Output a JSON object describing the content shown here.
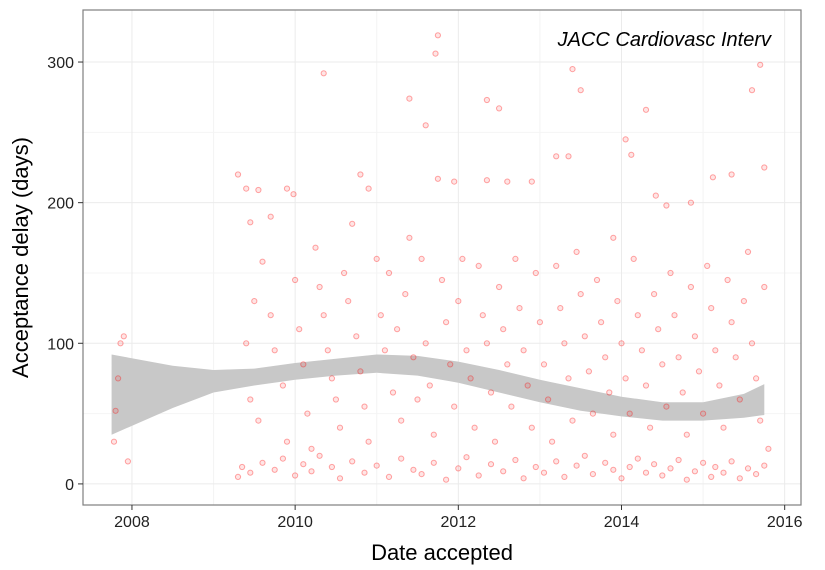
{
  "chart_data": {
    "type": "scatter",
    "title": "",
    "annotation": "JACC Cardiovasc Interv",
    "xlabel": "Date accepted",
    "ylabel": "Acceptance delay (days)",
    "xlim": [
      2007.4,
      2016.2
    ],
    "ylim": [
      -15,
      337
    ],
    "x_ticks": [
      2008,
      2010,
      2012,
      2014,
      2016
    ],
    "y_ticks": [
      0,
      100,
      200,
      300
    ],
    "grid": true,
    "colors": {
      "points": "#ff0000",
      "ribbon": "#c8c8c8",
      "border": "#7f7f7f"
    },
    "smooth_band": {
      "x": [
        2007.75,
        2008.5,
        2009.0,
        2009.5,
        2010.0,
        2010.5,
        2011.0,
        2011.5,
        2012.0,
        2012.5,
        2013.0,
        2013.5,
        2014.0,
        2014.5,
        2015.0,
        2015.5,
        2015.75
      ],
      "lower": [
        35,
        54,
        65,
        70,
        74,
        77,
        79,
        77,
        72,
        65,
        58,
        52,
        48,
        45,
        45,
        47,
        49
      ],
      "upper": [
        92,
        84,
        81,
        82,
        86,
        89,
        92,
        91,
        87,
        81,
        74,
        68,
        62,
        58,
        58,
        64,
        71
      ]
    },
    "series": [
      {
        "points": [
          [
            2007.78,
            30
          ],
          [
            2007.8,
            52
          ],
          [
            2007.83,
            75
          ],
          [
            2007.86,
            100
          ],
          [
            2007.9,
            105
          ],
          [
            2007.95,
            16
          ],
          [
            2009.3,
            220
          ],
          [
            2009.4,
            210
          ],
          [
            2009.45,
            186
          ],
          [
            2009.55,
            209
          ],
          [
            2009.7,
            190
          ],
          [
            2009.9,
            210
          ],
          [
            2009.98,
            206
          ],
          [
            2010.35,
            292
          ],
          [
            2010.8,
            220
          ],
          [
            2010.9,
            210
          ],
          [
            2011.4,
            274
          ],
          [
            2011.6,
            255
          ],
          [
            2011.75,
            217
          ],
          [
            2011.95,
            215
          ],
          [
            2011.72,
            306
          ],
          [
            2011.75,
            319
          ],
          [
            2012.35,
            273
          ],
          [
            2012.5,
            267
          ],
          [
            2012.35,
            216
          ],
          [
            2012.6,
            215
          ],
          [
            2012.9,
            215
          ],
          [
            2013.2,
            233
          ],
          [
            2013.35,
            233
          ],
          [
            2013.4,
            295
          ],
          [
            2013.5,
            280
          ],
          [
            2013.9,
            175
          ],
          [
            2014.05,
            245
          ],
          [
            2014.12,
            234
          ],
          [
            2014.3,
            266
          ],
          [
            2014.42,
            205
          ],
          [
            2014.55,
            198
          ],
          [
            2014.85,
            200
          ],
          [
            2015.12,
            218
          ],
          [
            2015.35,
            220
          ],
          [
            2015.6,
            280
          ],
          [
            2015.7,
            298
          ],
          [
            2015.75,
            225
          ],
          [
            2009.4,
            100
          ],
          [
            2009.45,
            60
          ],
          [
            2009.5,
            130
          ],
          [
            2009.55,
            45
          ],
          [
            2009.6,
            158
          ],
          [
            2009.7,
            120
          ],
          [
            2009.75,
            95
          ],
          [
            2009.85,
            70
          ],
          [
            2009.9,
            30
          ],
          [
            2010.0,
            145
          ],
          [
            2010.05,
            110
          ],
          [
            2010.1,
            85
          ],
          [
            2010.15,
            50
          ],
          [
            2010.2,
            25
          ],
          [
            2010.25,
            168
          ],
          [
            2010.3,
            140
          ],
          [
            2010.35,
            120
          ],
          [
            2010.4,
            95
          ],
          [
            2010.45,
            75
          ],
          [
            2010.5,
            60
          ],
          [
            2010.55,
            40
          ],
          [
            2010.6,
            150
          ],
          [
            2010.65,
            130
          ],
          [
            2010.7,
            185
          ],
          [
            2010.75,
            105
          ],
          [
            2010.8,
            80
          ],
          [
            2010.85,
            55
          ],
          [
            2010.9,
            30
          ],
          [
            2011.0,
            160
          ],
          [
            2011.05,
            120
          ],
          [
            2011.1,
            95
          ],
          [
            2011.15,
            150
          ],
          [
            2011.2,
            65
          ],
          [
            2011.25,
            110
          ],
          [
            2011.3,
            45
          ],
          [
            2011.35,
            135
          ],
          [
            2011.4,
            175
          ],
          [
            2011.45,
            90
          ],
          [
            2011.5,
            60
          ],
          [
            2011.55,
            160
          ],
          [
            2011.6,
            100
          ],
          [
            2011.65,
            70
          ],
          [
            2011.7,
            35
          ],
          [
            2011.8,
            145
          ],
          [
            2011.85,
            115
          ],
          [
            2011.9,
            85
          ],
          [
            2011.95,
            55
          ],
          [
            2012.0,
            130
          ],
          [
            2012.05,
            160
          ],
          [
            2012.1,
            95
          ],
          [
            2012.15,
            75
          ],
          [
            2012.2,
            40
          ],
          [
            2012.25,
            155
          ],
          [
            2012.3,
            120
          ],
          [
            2012.35,
            100
          ],
          [
            2012.4,
            65
          ],
          [
            2012.45,
            30
          ],
          [
            2012.5,
            140
          ],
          [
            2012.55,
            110
          ],
          [
            2012.6,
            85
          ],
          [
            2012.65,
            55
          ],
          [
            2012.7,
            160
          ],
          [
            2012.75,
            125
          ],
          [
            2012.8,
            95
          ],
          [
            2012.85,
            70
          ],
          [
            2012.9,
            40
          ],
          [
            2012.95,
            150
          ],
          [
            2013.0,
            115
          ],
          [
            2013.05,
            85
          ],
          [
            2013.1,
            60
          ],
          [
            2013.15,
            30
          ],
          [
            2013.2,
            155
          ],
          [
            2013.25,
            125
          ],
          [
            2013.3,
            100
          ],
          [
            2013.35,
            75
          ],
          [
            2013.4,
            45
          ],
          [
            2013.45,
            165
          ],
          [
            2013.5,
            135
          ],
          [
            2013.55,
            105
          ],
          [
            2013.6,
            80
          ],
          [
            2013.65,
            50
          ],
          [
            2013.7,
            145
          ],
          [
            2013.75,
            115
          ],
          [
            2013.8,
            90
          ],
          [
            2013.85,
            65
          ],
          [
            2013.9,
            35
          ],
          [
            2013.95,
            130
          ],
          [
            2014.0,
            100
          ],
          [
            2014.05,
            75
          ],
          [
            2014.1,
            50
          ],
          [
            2014.15,
            160
          ],
          [
            2014.2,
            120
          ],
          [
            2014.25,
            95
          ],
          [
            2014.3,
            70
          ],
          [
            2014.35,
            40
          ],
          [
            2014.4,
            135
          ],
          [
            2014.45,
            110
          ],
          [
            2014.5,
            85
          ],
          [
            2014.55,
            55
          ],
          [
            2014.6,
            150
          ],
          [
            2014.65,
            120
          ],
          [
            2014.7,
            90
          ],
          [
            2014.75,
            65
          ],
          [
            2014.8,
            35
          ],
          [
            2014.85,
            140
          ],
          [
            2014.9,
            105
          ],
          [
            2014.95,
            80
          ],
          [
            2015.0,
            50
          ],
          [
            2015.05,
            155
          ],
          [
            2015.1,
            125
          ],
          [
            2015.15,
            95
          ],
          [
            2015.2,
            70
          ],
          [
            2015.25,
            40
          ],
          [
            2015.3,
            145
          ],
          [
            2015.35,
            115
          ],
          [
            2015.4,
            90
          ],
          [
            2015.45,
            60
          ],
          [
            2015.5,
            130
          ],
          [
            2015.55,
            165
          ],
          [
            2015.6,
            100
          ],
          [
            2015.65,
            75
          ],
          [
            2015.7,
            45
          ],
          [
            2015.75,
            140
          ],
          [
            2015.8,
            25
          ],
          [
            2009.3,
            5
          ],
          [
            2009.35,
            12
          ],
          [
            2009.45,
            8
          ],
          [
            2009.6,
            15
          ],
          [
            2009.75,
            10
          ],
          [
            2009.85,
            18
          ],
          [
            2010.0,
            6
          ],
          [
            2010.1,
            14
          ],
          [
            2010.2,
            9
          ],
          [
            2010.3,
            20
          ],
          [
            2010.45,
            12
          ],
          [
            2010.55,
            4
          ],
          [
            2010.7,
            16
          ],
          [
            2010.85,
            8
          ],
          [
            2011.0,
            13
          ],
          [
            2011.15,
            5
          ],
          [
            2011.3,
            18
          ],
          [
            2011.45,
            10
          ],
          [
            2011.55,
            7
          ],
          [
            2011.7,
            15
          ],
          [
            2011.85,
            3
          ],
          [
            2012.0,
            11
          ],
          [
            2012.1,
            19
          ],
          [
            2012.25,
            6
          ],
          [
            2012.4,
            14
          ],
          [
            2012.55,
            9
          ],
          [
            2012.7,
            17
          ],
          [
            2012.8,
            4
          ],
          [
            2012.95,
            12
          ],
          [
            2013.05,
            8
          ],
          [
            2013.2,
            16
          ],
          [
            2013.3,
            5
          ],
          [
            2013.45,
            13
          ],
          [
            2013.55,
            20
          ],
          [
            2013.65,
            7
          ],
          [
            2013.8,
            15
          ],
          [
            2013.9,
            10
          ],
          [
            2014.0,
            4
          ],
          [
            2014.1,
            12
          ],
          [
            2014.2,
            18
          ],
          [
            2014.3,
            8
          ],
          [
            2014.4,
            14
          ],
          [
            2014.5,
            6
          ],
          [
            2014.6,
            11
          ],
          [
            2014.7,
            17
          ],
          [
            2014.8,
            3
          ],
          [
            2014.9,
            9
          ],
          [
            2015.0,
            15
          ],
          [
            2015.1,
            5
          ],
          [
            2015.15,
            12
          ],
          [
            2015.25,
            8
          ],
          [
            2015.35,
            16
          ],
          [
            2015.45,
            4
          ],
          [
            2015.55,
            11
          ],
          [
            2015.65,
            7
          ],
          [
            2015.75,
            13
          ]
        ]
      }
    ]
  }
}
